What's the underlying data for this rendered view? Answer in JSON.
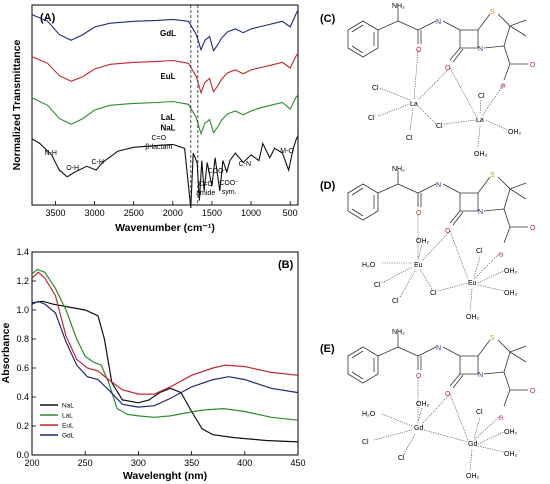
{
  "chart_data": [
    {
      "panel": "(A)",
      "type": "line",
      "xlabel": "Wavenumber (cm⁻¹)",
      "ylabel": "Normalized Transmittance",
      "xlim": [
        3800,
        400
      ],
      "x_reversed": true,
      "xticks": [
        3500,
        3000,
        2500,
        2000,
        1500,
        1000,
        500
      ],
      "series": [
        {
          "name": "GdL",
          "color": "#1f2a7a",
          "offset": 3.0,
          "points": [
            [
              3800,
              0.93
            ],
            [
              3600,
              0.86
            ],
            [
              3450,
              0.72
            ],
            [
              3300,
              0.66
            ],
            [
              3150,
              0.72
            ],
            [
              3000,
              0.8
            ],
            [
              2800,
              0.84
            ],
            [
              2500,
              0.86
            ],
            [
              2200,
              0.87
            ],
            [
              2000,
              0.88
            ],
            [
              1800,
              0.86
            ],
            [
              1700,
              0.72
            ],
            [
              1640,
              0.56
            ],
            [
              1590,
              0.66
            ],
            [
              1530,
              0.7
            ],
            [
              1480,
              0.55
            ],
            [
              1420,
              0.62
            ],
            [
              1380,
              0.68
            ],
            [
              1300,
              0.75
            ],
            [
              1200,
              0.78
            ],
            [
              1100,
              0.74
            ],
            [
              1000,
              0.78
            ],
            [
              900,
              0.8
            ],
            [
              800,
              0.82
            ],
            [
              700,
              0.84
            ],
            [
              600,
              0.86
            ],
            [
              500,
              0.8
            ],
            [
              430,
              0.93
            ],
            [
              400,
              0.98
            ]
          ]
        },
        {
          "name": "EuL",
          "color": "#c0282e",
          "offset": 2.0,
          "points": [
            [
              3800,
              0.93
            ],
            [
              3600,
              0.86
            ],
            [
              3450,
              0.73
            ],
            [
              3300,
              0.67
            ],
            [
              3150,
              0.72
            ],
            [
              3000,
              0.8
            ],
            [
              2800,
              0.85
            ],
            [
              2500,
              0.87
            ],
            [
              2200,
              0.88
            ],
            [
              2000,
              0.89
            ],
            [
              1800,
              0.86
            ],
            [
              1700,
              0.72
            ],
            [
              1640,
              0.55
            ],
            [
              1590,
              0.66
            ],
            [
              1530,
              0.7
            ],
            [
              1480,
              0.56
            ],
            [
              1420,
              0.63
            ],
            [
              1380,
              0.69
            ],
            [
              1300,
              0.76
            ],
            [
              1200,
              0.79
            ],
            [
              1100,
              0.75
            ],
            [
              1000,
              0.79
            ],
            [
              900,
              0.81
            ],
            [
              800,
              0.83
            ],
            [
              700,
              0.85
            ],
            [
              600,
              0.87
            ],
            [
              500,
              0.81
            ],
            [
              430,
              0.93
            ],
            [
              400,
              0.97
            ]
          ]
        },
        {
          "name": "LaL",
          "color": "#2e8b2e",
          "offset": 1.0,
          "points": [
            [
              3800,
              0.94
            ],
            [
              3600,
              0.86
            ],
            [
              3450,
              0.72
            ],
            [
              3300,
              0.66
            ],
            [
              3150,
              0.72
            ],
            [
              3000,
              0.81
            ],
            [
              2800,
              0.86
            ],
            [
              2500,
              0.88
            ],
            [
              2200,
              0.89
            ],
            [
              2000,
              0.9
            ],
            [
              1800,
              0.87
            ],
            [
              1700,
              0.73
            ],
            [
              1640,
              0.56
            ],
            [
              1590,
              0.67
            ],
            [
              1530,
              0.71
            ],
            [
              1480,
              0.57
            ],
            [
              1420,
              0.64
            ],
            [
              1380,
              0.7
            ],
            [
              1300,
              0.77
            ],
            [
              1200,
              0.8
            ],
            [
              1100,
              0.76
            ],
            [
              1000,
              0.8
            ],
            [
              900,
              0.83
            ],
            [
              800,
              0.85
            ],
            [
              700,
              0.87
            ],
            [
              600,
              0.89
            ],
            [
              500,
              0.82
            ],
            [
              430,
              0.94
            ],
            [
              400,
              0.97
            ]
          ]
        },
        {
          "name": "NaL",
          "color": "#111111",
          "offset": 0.0,
          "points": [
            [
              3800,
              0.95
            ],
            [
              3700,
              0.9
            ],
            [
              3550,
              0.78
            ],
            [
              3450,
              0.62
            ],
            [
              3350,
              0.55
            ],
            [
              3250,
              0.6
            ],
            [
              3100,
              0.66
            ],
            [
              2980,
              0.62
            ],
            [
              2900,
              0.7
            ],
            [
              2700,
              0.82
            ],
            [
              2500,
              0.86
            ],
            [
              2200,
              0.88
            ],
            [
              2000,
              0.89
            ],
            [
              1850,
              0.85
            ],
            [
              1770,
              0.22
            ],
            [
              1740,
              0.8
            ],
            [
              1690,
              0.7
            ],
            [
              1660,
              0.3
            ],
            [
              1630,
              0.72
            ],
            [
              1600,
              0.4
            ],
            [
              1560,
              0.7
            ],
            [
              1500,
              0.45
            ],
            [
              1460,
              0.75
            ],
            [
              1400,
              0.4
            ],
            [
              1360,
              0.72
            ],
            [
              1310,
              0.6
            ],
            [
              1270,
              0.72
            ],
            [
              1200,
              0.8
            ],
            [
              1100,
              0.7
            ],
            [
              1000,
              0.78
            ],
            [
              900,
              0.72
            ],
            [
              850,
              0.9
            ],
            [
              760,
              0.75
            ],
            [
              700,
              0.85
            ],
            [
              600,
              0.8
            ],
            [
              520,
              0.62
            ],
            [
              460,
              0.85
            ],
            [
              420,
              0.95
            ],
            [
              400,
              0.98
            ]
          ]
        }
      ],
      "annotations": [
        {
          "text": "N-H",
          "x": 3560
        },
        {
          "text": "O-H",
          "x": 3280
        },
        {
          "text": "C-H",
          "x": 2960
        },
        {
          "text": "C=O",
          "x": 2180
        },
        {
          "text": "β-lactam",
          "x": 2180
        },
        {
          "text": "C=O",
          "x": 1580
        },
        {
          "text": "amide",
          "x": 1580
        },
        {
          "text": "COO⁻",
          "x": 1430
        },
        {
          "text": "COO⁻",
          "x": 1280
        },
        {
          "text": "sym.",
          "x": 1280
        },
        {
          "text": "C-N",
          "x": 1080
        },
        {
          "text": "M-O",
          "x": 540
        }
      ]
    },
    {
      "panel": "(B)",
      "type": "line",
      "xlabel": "Wavelenght (nm)",
      "ylabel": "Absorbance",
      "xlim": [
        200,
        450
      ],
      "ylim": [
        0.0,
        1.4
      ],
      "xticks": [
        200,
        250,
        300,
        350,
        400,
        450
      ],
      "yticks": [
        0.0,
        0.2,
        0.4,
        0.6,
        0.8,
        1.0,
        1.2,
        1.4
      ],
      "legend_position": "bottom-left",
      "series": [
        {
          "name": "NaL",
          "color": "#111111",
          "points": [
            [
              200,
              1.05
            ],
            [
              210,
              1.06
            ],
            [
              220,
              1.04
            ],
            [
              235,
              1.02
            ],
            [
              250,
              1.0
            ],
            [
              262,
              0.96
            ],
            [
              268,
              0.8
            ],
            [
              275,
              0.5
            ],
            [
              285,
              0.38
            ],
            [
              300,
              0.36
            ],
            [
              310,
              0.38
            ],
            [
              320,
              0.43
            ],
            [
              330,
              0.46
            ],
            [
              340,
              0.43
            ],
            [
              350,
              0.3
            ],
            [
              360,
              0.18
            ],
            [
              370,
              0.14
            ],
            [
              390,
              0.12
            ],
            [
              420,
              0.1
            ],
            [
              450,
              0.09
            ]
          ]
        },
        {
          "name": "LaL",
          "color": "#2e8b2e",
          "points": [
            [
              200,
              1.25
            ],
            [
              205,
              1.28
            ],
            [
              212,
              1.26
            ],
            [
              222,
              1.15
            ],
            [
              232,
              1.0
            ],
            [
              242,
              0.8
            ],
            [
              250,
              0.68
            ],
            [
              258,
              0.64
            ],
            [
              265,
              0.62
            ],
            [
              272,
              0.5
            ],
            [
              280,
              0.32
            ],
            [
              290,
              0.28
            ],
            [
              300,
              0.27
            ],
            [
              315,
              0.26
            ],
            [
              330,
              0.27
            ],
            [
              345,
              0.29
            ],
            [
              360,
              0.31
            ],
            [
              380,
              0.32
            ],
            [
              400,
              0.3
            ],
            [
              425,
              0.26
            ],
            [
              450,
              0.24
            ]
          ]
        },
        {
          "name": "EuL",
          "color": "#c0282e",
          "points": [
            [
              200,
              1.22
            ],
            [
              206,
              1.26
            ],
            [
              212,
              1.22
            ],
            [
              222,
              1.1
            ],
            [
              232,
              0.82
            ],
            [
              242,
              0.66
            ],
            [
              252,
              0.6
            ],
            [
              262,
              0.58
            ],
            [
              272,
              0.52
            ],
            [
              285,
              0.45
            ],
            [
              300,
              0.42
            ],
            [
              315,
              0.42
            ],
            [
              330,
              0.47
            ],
            [
              350,
              0.55
            ],
            [
              370,
              0.6
            ],
            [
              382,
              0.62
            ],
            [
              400,
              0.61
            ],
            [
              425,
              0.57
            ],
            [
              450,
              0.55
            ]
          ]
        },
        {
          "name": "GdL",
          "color": "#1f2a7a",
          "points": [
            [
              200,
              1.04
            ],
            [
              206,
              1.06
            ],
            [
              212,
              1.04
            ],
            [
              222,
              0.98
            ],
            [
              232,
              0.78
            ],
            [
              242,
              0.62
            ],
            [
              252,
              0.54
            ],
            [
              262,
              0.52
            ],
            [
              272,
              0.45
            ],
            [
              285,
              0.35
            ],
            [
              300,
              0.33
            ],
            [
              315,
              0.34
            ],
            [
              330,
              0.39
            ],
            [
              350,
              0.47
            ],
            [
              370,
              0.52
            ],
            [
              385,
              0.54
            ],
            [
              400,
              0.52
            ],
            [
              425,
              0.46
            ],
            [
              450,
              0.43
            ]
          ]
        }
      ]
    }
  ],
  "structures": [
    {
      "panel": "(C)",
      "metal": "La"
    },
    {
      "panel": "(D)",
      "metal": "Eu"
    },
    {
      "panel": "(E)",
      "metal": "Gd"
    }
  ],
  "molecule_labels": {
    "amine": "NH₂",
    "amide_nh": "H\nN",
    "sulfur": "S",
    "ring_n": "N",
    "carbonyl_o": "O",
    "lactam_o": "O",
    "carboxylate_o": "O",
    "carboxylate_minus": "⊖",
    "chloride": "Cl",
    "water": "OH₂",
    "water_left": "H₂O"
  }
}
